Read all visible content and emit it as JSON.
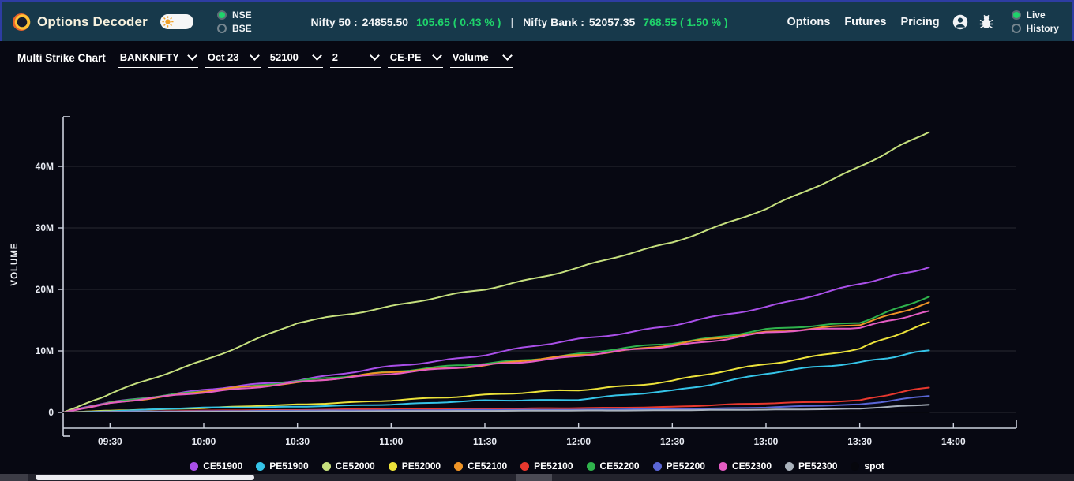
{
  "header": {
    "brand": "Options Decoder",
    "exchange_options": [
      {
        "label": "NSE",
        "selected": true
      },
      {
        "label": "BSE",
        "selected": false
      }
    ],
    "indices": [
      {
        "name": "Nifty 50 :",
        "value": "24855.50",
        "change": "105.65 ( 0.43 % )"
      },
      {
        "name": "Nifty Bank :",
        "value": "52057.35",
        "change": "768.55 ( 1.50 % )"
      }
    ],
    "index_separator": "|",
    "nav": [
      "Options",
      "Futures",
      "Pricing"
    ],
    "mode_options": [
      {
        "label": "Live",
        "selected": true
      },
      {
        "label": "History",
        "selected": false
      }
    ]
  },
  "toolbar": {
    "title": "Multi Strike Chart",
    "dropdowns": [
      {
        "name": "symbol",
        "value": "BANKNIFTY",
        "width": 102
      },
      {
        "name": "expiry",
        "value": "Oct 23",
        "width": 70
      },
      {
        "name": "strike",
        "value": "52100",
        "width": 70
      },
      {
        "name": "strike-count",
        "value": "2",
        "width": 64
      },
      {
        "name": "option-side",
        "value": "CE-PE",
        "width": 70
      },
      {
        "name": "metric",
        "value": "Volume",
        "width": 80
      }
    ]
  },
  "chart_data": {
    "type": "line",
    "ylabel": "VOLUME",
    "grid": true,
    "legend_position": "bottom",
    "x_tick_labels": [
      "09:30",
      "10:00",
      "10:30",
      "11:00",
      "11:30",
      "12:00",
      "12:30",
      "13:00",
      "13:30",
      "14:00"
    ],
    "x_tick_hours": [
      9.5,
      10,
      10.5,
      11,
      11.5,
      12,
      12.5,
      13,
      13.5,
      14
    ],
    "x_sample_hours": [
      9.25,
      9.5,
      10,
      10.5,
      11,
      11.5,
      12,
      12.5,
      13,
      13.5,
      13.87
    ],
    "y_tick_labels": [
      "0",
      "10M",
      "20M",
      "30M",
      "40M"
    ],
    "y_tick_values_millions": [
      0,
      10,
      20,
      30,
      40
    ],
    "ylim_millions": [
      0,
      47
    ],
    "series": [
      {
        "name": "CE51900",
        "color": "#a94fe8",
        "values_millions": [
          0,
          1.7,
          3.6,
          5.3,
          7.4,
          9.4,
          11.9,
          14.1,
          17.2,
          20.8,
          23.7
        ]
      },
      {
        "name": "PE51900",
        "color": "#35c4e8",
        "values_millions": [
          0,
          0.2,
          0.8,
          0.9,
          1.3,
          1.9,
          2.1,
          3.5,
          6.3,
          8.2,
          10.0
        ]
      },
      {
        "name": "CE52000",
        "color": "#c6e07e",
        "values_millions": [
          0,
          3.0,
          8.5,
          14.5,
          17.3,
          20.0,
          23.5,
          27.7,
          33.0,
          40.0,
          45.6
        ]
      },
      {
        "name": "PE52000",
        "color": "#ece23a",
        "values_millions": [
          0,
          0.3,
          0.7,
          1.3,
          1.9,
          2.9,
          3.6,
          5.1,
          7.9,
          10.3,
          14.7
        ]
      },
      {
        "name": "CE52100",
        "color": "#ef9426",
        "values_millions": [
          0,
          1.5,
          3.4,
          4.9,
          6.5,
          7.7,
          9.3,
          11.0,
          13.1,
          14.2,
          17.9
        ]
      },
      {
        "name": "PE52100",
        "color": "#e8382e",
        "values_millions": [
          0,
          0.1,
          0.3,
          0.4,
          0.6,
          0.6,
          0.7,
          0.9,
          1.5,
          1.9,
          4.2
        ]
      },
      {
        "name": "CE52200",
        "color": "#2fb34c",
        "values_millions": [
          0,
          1.6,
          3.5,
          5.0,
          6.7,
          7.9,
          9.5,
          11.3,
          13.4,
          14.7,
          18.7
        ]
      },
      {
        "name": "PE52200",
        "color": "#5a66d6",
        "values_millions": [
          0,
          0.1,
          0.2,
          0.3,
          0.35,
          0.4,
          0.45,
          0.55,
          0.8,
          1.3,
          2.7
        ]
      },
      {
        "name": "CE52300",
        "color": "#e45cc3",
        "values_millions": [
          0,
          1.5,
          3.3,
          4.8,
          6.4,
          7.6,
          9.2,
          10.8,
          12.9,
          13.9,
          16.3
        ]
      },
      {
        "name": "PE52300",
        "color": "#a9b2bc",
        "values_millions": [
          0,
          0.05,
          0.12,
          0.18,
          0.2,
          0.25,
          0.3,
          0.35,
          0.45,
          0.6,
          1.3
        ]
      },
      {
        "name": "spot",
        "color": "#06070d",
        "values_millions": [
          0,
          0,
          0,
          0,
          0,
          0,
          0,
          0,
          0,
          0,
          0
        ]
      }
    ],
    "draw_order": [
      "CE52000",
      "CE51900",
      "CE52200",
      "CE52100",
      "CE52300",
      "PE52000",
      "PE51900",
      "PE52100",
      "PE52200",
      "PE52300",
      "spot"
    ]
  },
  "colors": {
    "header_bg": "#17394b",
    "header_border": "#2e3da3",
    "page_bg": "#070812",
    "positive_green": "#1fd36b",
    "axis": "#ccd1dd",
    "gridline": "rgba(255,255,255,0.14)"
  }
}
